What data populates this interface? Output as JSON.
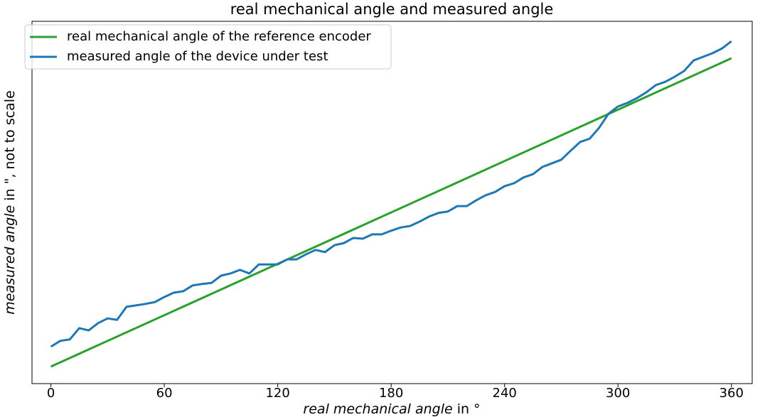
{
  "chart_data": {
    "type": "line",
    "title": "real mechanical angle and measured angle",
    "x_label": {
      "italic": "real mechanical angle",
      "text": " in °"
    },
    "y_label": {
      "italic": "measured angle",
      "text": " in \", not to scale"
    },
    "xlim": [
      -10,
      371
    ],
    "ylim": [
      0,
      100
    ],
    "xticks": [
      0,
      60,
      120,
      180,
      240,
      300,
      360
    ],
    "legend": "upper left",
    "series": [
      {
        "name": "real mechanical angle of the reference encoder",
        "color": "#2ca02c",
        "x": [
          0,
          360
        ],
        "values": [
          4.7,
          89.8
        ]
      },
      {
        "name": "measured angle of the device under test",
        "color": "#1f77b4",
        "x": [
          0,
          5,
          10,
          15,
          20,
          25,
          30,
          35,
          40,
          45,
          50,
          55,
          60,
          65,
          70,
          75,
          80,
          85,
          90,
          95,
          100,
          105,
          110,
          115,
          120,
          125,
          130,
          135,
          140,
          145,
          150,
          155,
          160,
          165,
          170,
          175,
          180,
          185,
          190,
          195,
          200,
          205,
          210,
          215,
          220,
          225,
          230,
          235,
          240,
          245,
          250,
          255,
          260,
          265,
          270,
          275,
          280,
          285,
          290,
          295,
          300,
          305,
          310,
          315,
          320,
          325,
          330,
          335,
          340,
          345,
          350,
          355,
          360
        ],
        "values": [
          10.2,
          11.8,
          12.2,
          15.3,
          14.7,
          16.7,
          18.0,
          17.6,
          21.2,
          21.6,
          22.0,
          22.5,
          23.9,
          25.1,
          25.5,
          27.1,
          27.5,
          27.8,
          29.8,
          30.4,
          31.4,
          30.4,
          32.9,
          32.9,
          32.9,
          34.3,
          34.3,
          35.7,
          36.9,
          36.3,
          38.2,
          38.8,
          40.2,
          40.0,
          41.2,
          41.2,
          42.2,
          43.1,
          43.5,
          44.7,
          46.1,
          47.1,
          47.5,
          49.0,
          49.0,
          50.6,
          52.0,
          52.9,
          54.5,
          55.3,
          56.9,
          57.8,
          59.8,
          60.8,
          61.8,
          64.3,
          66.7,
          67.6,
          70.6,
          74.5,
          76.5,
          77.5,
          78.8,
          80.4,
          82.4,
          83.3,
          84.7,
          86.3,
          89.2,
          90.2,
          91.2,
          92.5,
          94.5
        ]
      }
    ]
  }
}
